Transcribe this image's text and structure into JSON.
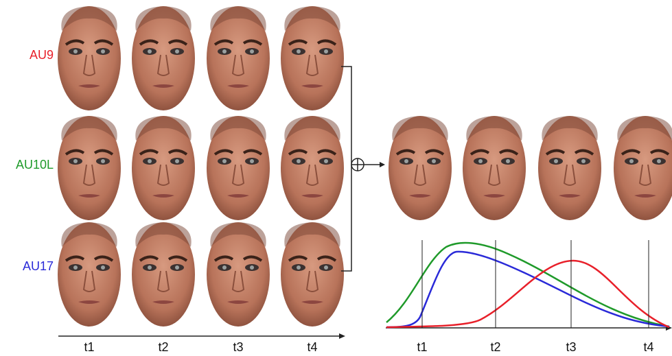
{
  "rows": [
    {
      "label": "AU9",
      "color": "#e8202a"
    },
    {
      "label": "AU10L",
      "color": "#1f9a2a"
    },
    {
      "label": "AU17",
      "color": "#2a2ad8"
    }
  ],
  "time_labels": [
    "t1",
    "t2",
    "t3",
    "t4"
  ]
}
